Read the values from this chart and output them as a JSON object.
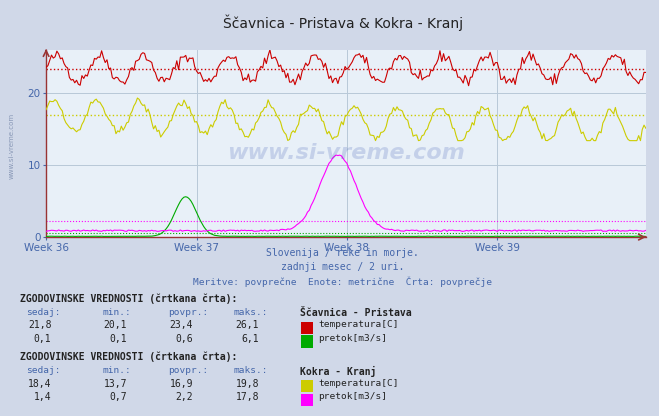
{
  "title": "Ščavnica - Pristava & Kokra - Kranj",
  "bg_color": "#d0d8e8",
  "plot_bg_color": "#e8f0f8",
  "grid_color": "#b8c8d8",
  "weeks": [
    "Week 36",
    "Week 37",
    "Week 38",
    "Week 39"
  ],
  "ylim": [
    0,
    26
  ],
  "yticks": [
    0,
    10,
    20
  ],
  "n_points": 336,
  "scavnica_temp_mean": 23.4,
  "scavnica_temp_min": 20.1,
  "scavnica_temp_max": 26.1,
  "scavnica_temp_sedaj": 21.8,
  "scavnica_pretok_mean": 0.6,
  "scavnica_pretok_min": 0.1,
  "scavnica_pretok_max": 6.1,
  "scavnica_pretok_sedaj": 0.1,
  "kokra_temp_mean": 16.9,
  "kokra_temp_min": 13.7,
  "kokra_temp_max": 19.8,
  "kokra_temp_sedaj": 18.4,
  "kokra_pretok_mean": 2.2,
  "kokra_pretok_min": 0.7,
  "kokra_pretok_max": 17.8,
  "kokra_pretok_sedaj": 1.4,
  "color_scavnica_temp": "#cc0000",
  "color_scavnica_pretok": "#00aa00",
  "color_kokra_temp": "#cccc00",
  "color_kokra_pretok": "#ff00ff",
  "subtitle1": "Slovenija / reke in morje.",
  "subtitle2": "zadnji mesec / 2 uri.",
  "subtitle3": "Meritve: povprečne  Enote: metrične  Črta: povprečje",
  "text_color": "#4466aa",
  "table1_title": "ZGODOVINSKE VREDNOSTI (črtkana črta):",
  "table2_title": "ZGODOVINSKE VREDNOSTI (črtkana črta):",
  "watermark": "www.si-vreme.com"
}
